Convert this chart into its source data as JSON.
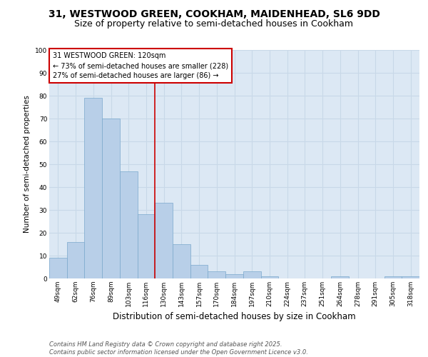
{
  "title1": "31, WESTWOOD GREEN, COOKHAM, MAIDENHEAD, SL6 9DD",
  "title2": "Size of property relative to semi-detached houses in Cookham",
  "xlabel": "Distribution of semi-detached houses by size in Cookham",
  "ylabel": "Number of semi-detached properties",
  "categories": [
    "49sqm",
    "62sqm",
    "76sqm",
    "89sqm",
    "103sqm",
    "116sqm",
    "130sqm",
    "143sqm",
    "157sqm",
    "170sqm",
    "184sqm",
    "197sqm",
    "210sqm",
    "224sqm",
    "237sqm",
    "251sqm",
    "264sqm",
    "278sqm",
    "291sqm",
    "305sqm",
    "318sqm"
  ],
  "values": [
    9,
    16,
    79,
    70,
    47,
    28,
    33,
    15,
    6,
    3,
    2,
    3,
    1,
    0,
    0,
    0,
    1,
    0,
    0,
    1,
    1
  ],
  "bar_color": "#b8cfe8",
  "bar_edge_color": "#7aa8cc",
  "grid_color": "#c8d8e8",
  "background_color": "#dce8f4",
  "vline_x_index": 5.5,
  "vline_color": "#cc0000",
  "annotation_title": "31 WESTWOOD GREEN: 120sqm",
  "annotation_line2": "← 73% of semi-detached houses are smaller (228)",
  "annotation_line3": "27% of semi-detached houses are larger (86) →",
  "annotation_box_color": "#cc0000",
  "ylim": [
    0,
    100
  ],
  "yticks": [
    0,
    10,
    20,
    30,
    40,
    50,
    60,
    70,
    80,
    90,
    100
  ],
  "footer": "Contains HM Land Registry data © Crown copyright and database right 2025.\nContains public sector information licensed under the Open Government Licence v3.0.",
  "title1_fontsize": 10,
  "title2_fontsize": 9,
  "xlabel_fontsize": 8.5,
  "ylabel_fontsize": 7.5,
  "tick_fontsize": 6.5,
  "footer_fontsize": 6.0,
  "annot_fontsize": 7.0
}
